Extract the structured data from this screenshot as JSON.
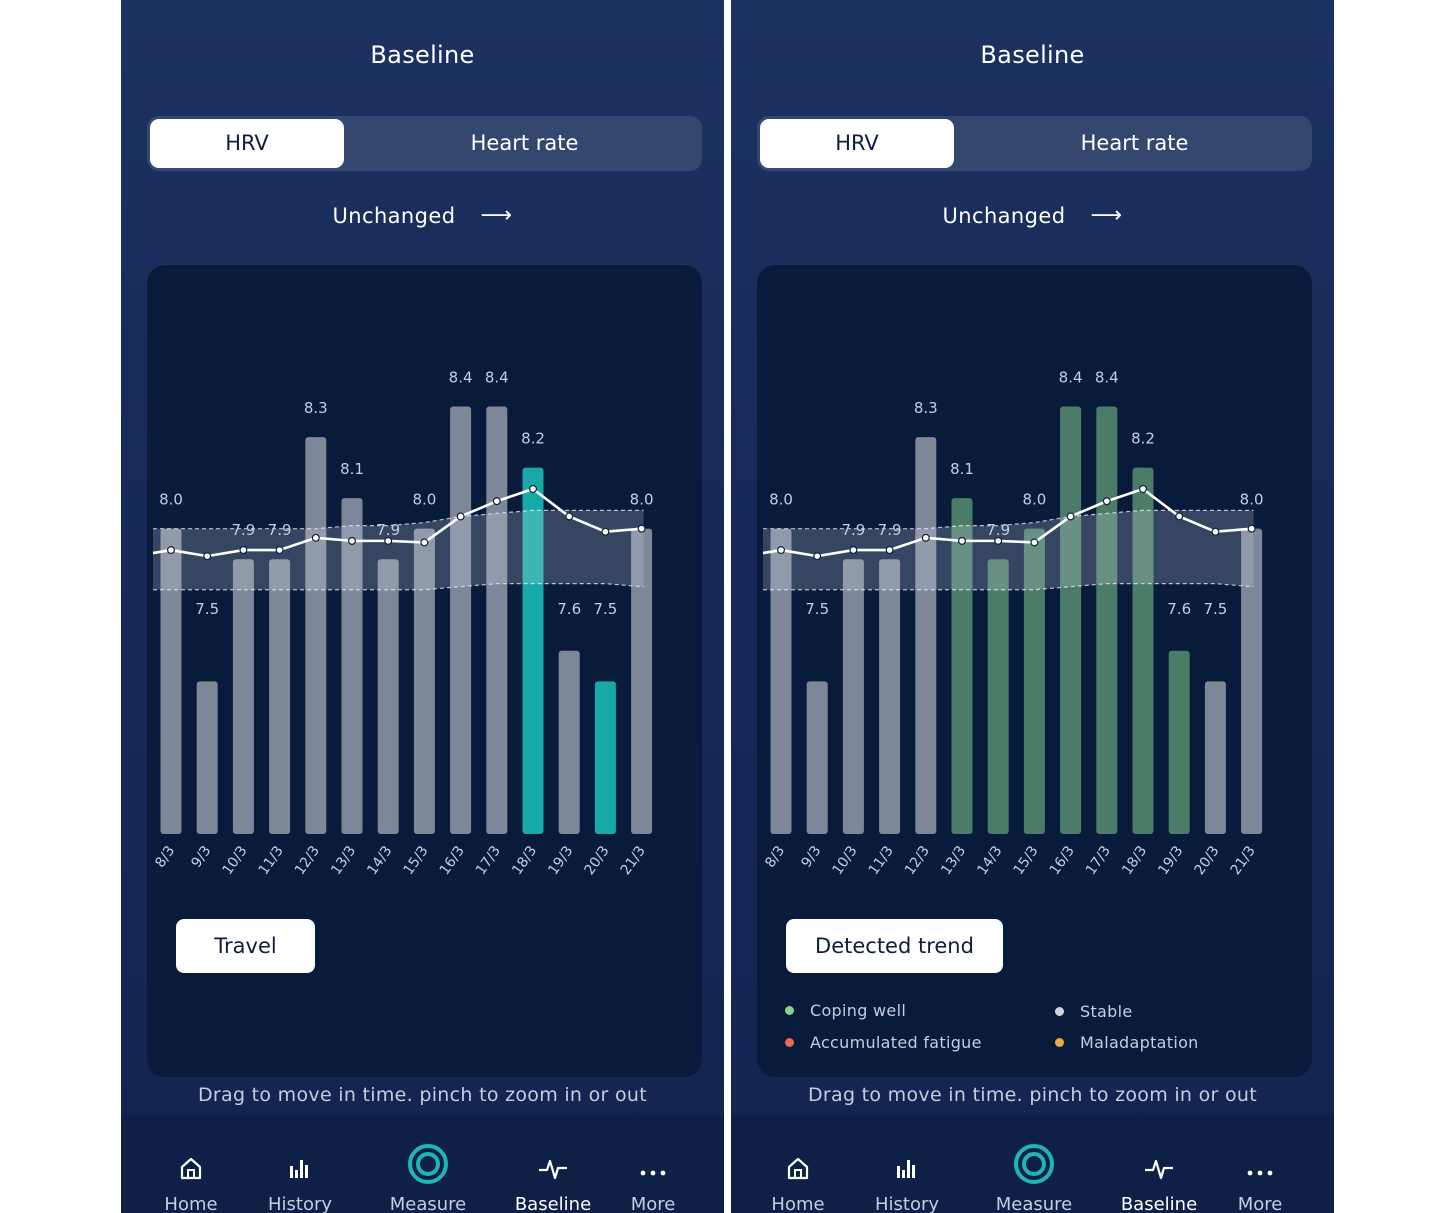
{
  "screens": [
    {
      "title": "Baseline",
      "tabs": [
        {
          "label": "HRV",
          "active": true
        },
        {
          "label": "Heart rate",
          "active": false
        }
      ],
      "trend": {
        "label": "Unchanged",
        "arrow": "right-arrow-icon"
      },
      "chip": "Travel",
      "highlight_color": "#17a9a7",
      "hint": "Drag to move in time. pinch to zoom in or out",
      "legend": []
    },
    {
      "title": "Baseline",
      "tabs": [
        {
          "label": "HRV",
          "active": true
        },
        {
          "label": "Heart rate",
          "active": false
        }
      ],
      "trend": {
        "label": "Unchanged",
        "arrow": "right-arrow-icon"
      },
      "chip": "Detected trend",
      "highlight_color": "#4a7c67",
      "hint": "Drag to move in time. pinch to zoom in or out",
      "legend": [
        {
          "label": "Coping well",
          "color": "#86d68a"
        },
        {
          "label": "Stable",
          "color": "#cfd4de"
        },
        {
          "label": "Accumulated fatigue",
          "color": "#e56a52"
        },
        {
          "label": "Maladaptation",
          "color": "#e8a94a"
        }
      ]
    }
  ],
  "chart_data": [
    {
      "type": "bar",
      "categories": [
        "8/3",
        "9/3",
        "10/3",
        "11/3",
        "12/3",
        "13/3",
        "14/3",
        "15/3",
        "16/3",
        "17/3",
        "18/3",
        "19/3",
        "20/3",
        "21/3"
      ],
      "values": [
        8.0,
        7.5,
        7.9,
        7.9,
        8.3,
        8.1,
        7.9,
        8.0,
        8.4,
        8.4,
        8.2,
        7.6,
        7.5,
        8.0
      ],
      "value_labels": [
        "8.0",
        "7.5",
        "7.9",
        "7.9",
        "8.3",
        "8.1",
        "7.9",
        "8.0",
        "8.4",
        "8.4",
        "8.2",
        "7.6",
        "7.5",
        "8.0"
      ],
      "highlighted": [
        "18/3",
        "20/3"
      ],
      "trend_line": [
        7.93,
        7.91,
        7.93,
        7.93,
        7.97,
        7.96,
        7.96,
        7.955,
        8.04,
        8.09,
        8.13,
        8.04,
        7.99,
        8.0
      ],
      "baseline_band": {
        "upper": [
          8.0,
          8.0,
          8.0,
          8.0,
          8.0,
          8.01,
          8.01,
          8.02,
          8.04,
          8.05,
          8.06,
          8.06,
          8.06,
          8.06
        ],
        "lower": [
          7.8,
          7.8,
          7.8,
          7.8,
          7.8,
          7.8,
          7.8,
          7.8,
          7.81,
          7.82,
          7.82,
          7.82,
          7.82,
          7.81
        ]
      },
      "ylim": [
        7.0,
        8.5
      ]
    },
    {
      "type": "bar",
      "categories": [
        "8/3",
        "9/3",
        "10/3",
        "11/3",
        "12/3",
        "13/3",
        "14/3",
        "15/3",
        "16/3",
        "17/3",
        "18/3",
        "19/3",
        "20/3",
        "21/3"
      ],
      "values": [
        8.0,
        7.5,
        7.9,
        7.9,
        8.3,
        8.1,
        7.9,
        8.0,
        8.4,
        8.4,
        8.2,
        7.6,
        7.5,
        8.0
      ],
      "value_labels": [
        "8.0",
        "7.5",
        "7.9",
        "7.9",
        "8.3",
        "8.1",
        "7.9",
        "8.0",
        "8.4",
        "8.4",
        "8.2",
        "7.6",
        "7.5",
        "8.0"
      ],
      "highlighted": [
        "13/3",
        "14/3",
        "15/3",
        "16/3",
        "17/3",
        "18/3",
        "19/3"
      ],
      "trend_line": [
        7.93,
        7.91,
        7.93,
        7.93,
        7.97,
        7.96,
        7.96,
        7.955,
        8.04,
        8.09,
        8.13,
        8.04,
        7.99,
        8.0
      ],
      "baseline_band": {
        "upper": [
          8.0,
          8.0,
          8.0,
          8.0,
          8.0,
          8.01,
          8.01,
          8.02,
          8.04,
          8.05,
          8.06,
          8.06,
          8.06,
          8.06
        ],
        "lower": [
          7.8,
          7.8,
          7.8,
          7.8,
          7.8,
          7.8,
          7.8,
          7.8,
          7.81,
          7.82,
          7.82,
          7.82,
          7.82,
          7.81
        ]
      },
      "ylim": [
        7.0,
        8.5
      ]
    }
  ],
  "nav": [
    {
      "label": "Home",
      "icon": "home-icon",
      "selected": false
    },
    {
      "label": "History",
      "icon": "history-icon",
      "selected": false
    },
    {
      "label": "Measure",
      "icon": "measure-icon",
      "selected": false
    },
    {
      "label": "Baseline",
      "icon": "baseline-icon",
      "selected": true
    },
    {
      "label": "More",
      "icon": "more-icon",
      "selected": false
    }
  ]
}
